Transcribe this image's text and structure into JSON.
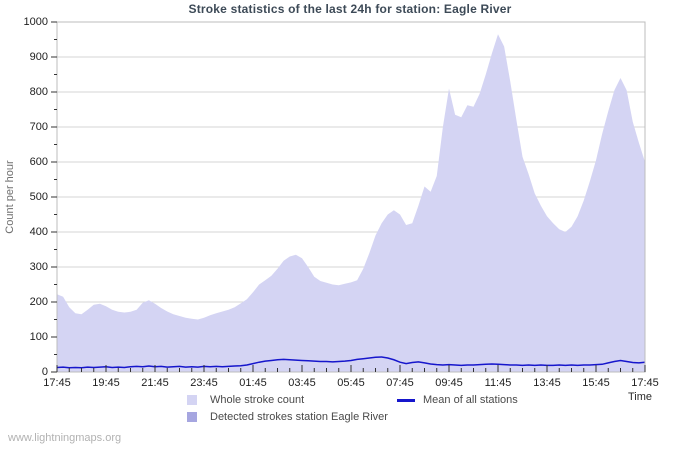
{
  "chart": {
    "title": "Stroke statistics of the last 24h for station: Eagle River",
    "ylabel": "Count per hour",
    "xlabel": "Time"
  },
  "legend": {
    "whole": "Whole stroke count",
    "mean": "Mean of all stations",
    "detected": "Detected strokes station Eagle River"
  },
  "watermark": "www.lightningmaps.org",
  "colors": {
    "whole_fill": "#d4d4f3",
    "detected_fill": "#a6a6e0",
    "mean_line": "#1616cc",
    "grid": "#d6d6d6",
    "border": "#bcbcbc",
    "tick": "#333333"
  },
  "chart_data": {
    "type": "area",
    "title": "Stroke statistics of the last 24h for station: Eagle River",
    "xlabel": "Time",
    "ylabel": "Count per hour",
    "x_start": "17:45",
    "x_interval_minutes": 15,
    "x_tick_labels": [
      "17:45",
      "19:45",
      "21:45",
      "23:45",
      "01:45",
      "03:45",
      "05:45",
      "07:45",
      "09:45",
      "11:45",
      "13:45",
      "15:45",
      "17:45"
    ],
    "y_ticks": [
      0,
      100,
      200,
      300,
      400,
      500,
      600,
      700,
      800,
      900,
      1000
    ],
    "ylim": [
      0,
      1000
    ],
    "grid": "horizontal",
    "legend_position": "bottom",
    "series": [
      {
        "name": "Whole stroke count",
        "style": "area",
        "color": "#d4d4f3",
        "values": [
          222,
          215,
          185,
          168,
          165,
          178,
          192,
          195,
          188,
          178,
          172,
          170,
          172,
          178,
          198,
          205,
          195,
          183,
          173,
          165,
          160,
          155,
          152,
          150,
          155,
          162,
          168,
          173,
          178,
          185,
          196,
          208,
          228,
          250,
          262,
          275,
          295,
          318,
          330,
          335,
          325,
          300,
          272,
          260,
          255,
          250,
          248,
          252,
          256,
          262,
          295,
          340,
          390,
          425,
          450,
          462,
          450,
          420,
          425,
          475,
          530,
          515,
          560,
          700,
          810,
          735,
          728,
          762,
          758,
          795,
          850,
          910,
          965,
          930,
          830,
          720,
          615,
          565,
          510,
          475,
          445,
          425,
          408,
          400,
          415,
          445,
          490,
          545,
          605,
          680,
          745,
          805,
          840,
          805,
          715,
          655,
          600
        ]
      },
      {
        "name": "Detected strokes station Eagle River",
        "style": "area",
        "color": "#a6a6e0",
        "constant_value": 0
      },
      {
        "name": "Mean of all stations",
        "style": "line",
        "color": "#1616cc",
        "values": [
          13,
          14,
          12,
          13,
          12,
          14,
          13,
          14,
          15,
          13,
          14,
          13,
          15,
          16,
          15,
          17,
          15,
          16,
          14,
          15,
          16,
          14,
          15,
          14,
          16,
          15,
          16,
          15,
          16,
          17,
          18,
          20,
          24,
          28,
          31,
          33,
          35,
          36,
          35,
          34,
          33,
          32,
          31,
          30,
          30,
          29,
          30,
          31,
          33,
          36,
          38,
          40,
          42,
          43,
          40,
          35,
          28,
          24,
          27,
          29,
          26,
          23,
          21,
          20,
          21,
          20,
          19,
          20,
          20,
          21,
          22,
          23,
          22,
          21,
          20,
          20,
          19,
          20,
          19,
          20,
          19,
          19,
          20,
          19,
          20,
          19,
          20,
          20,
          21,
          22,
          26,
          30,
          33,
          30,
          27,
          26,
          28
        ]
      }
    ]
  }
}
